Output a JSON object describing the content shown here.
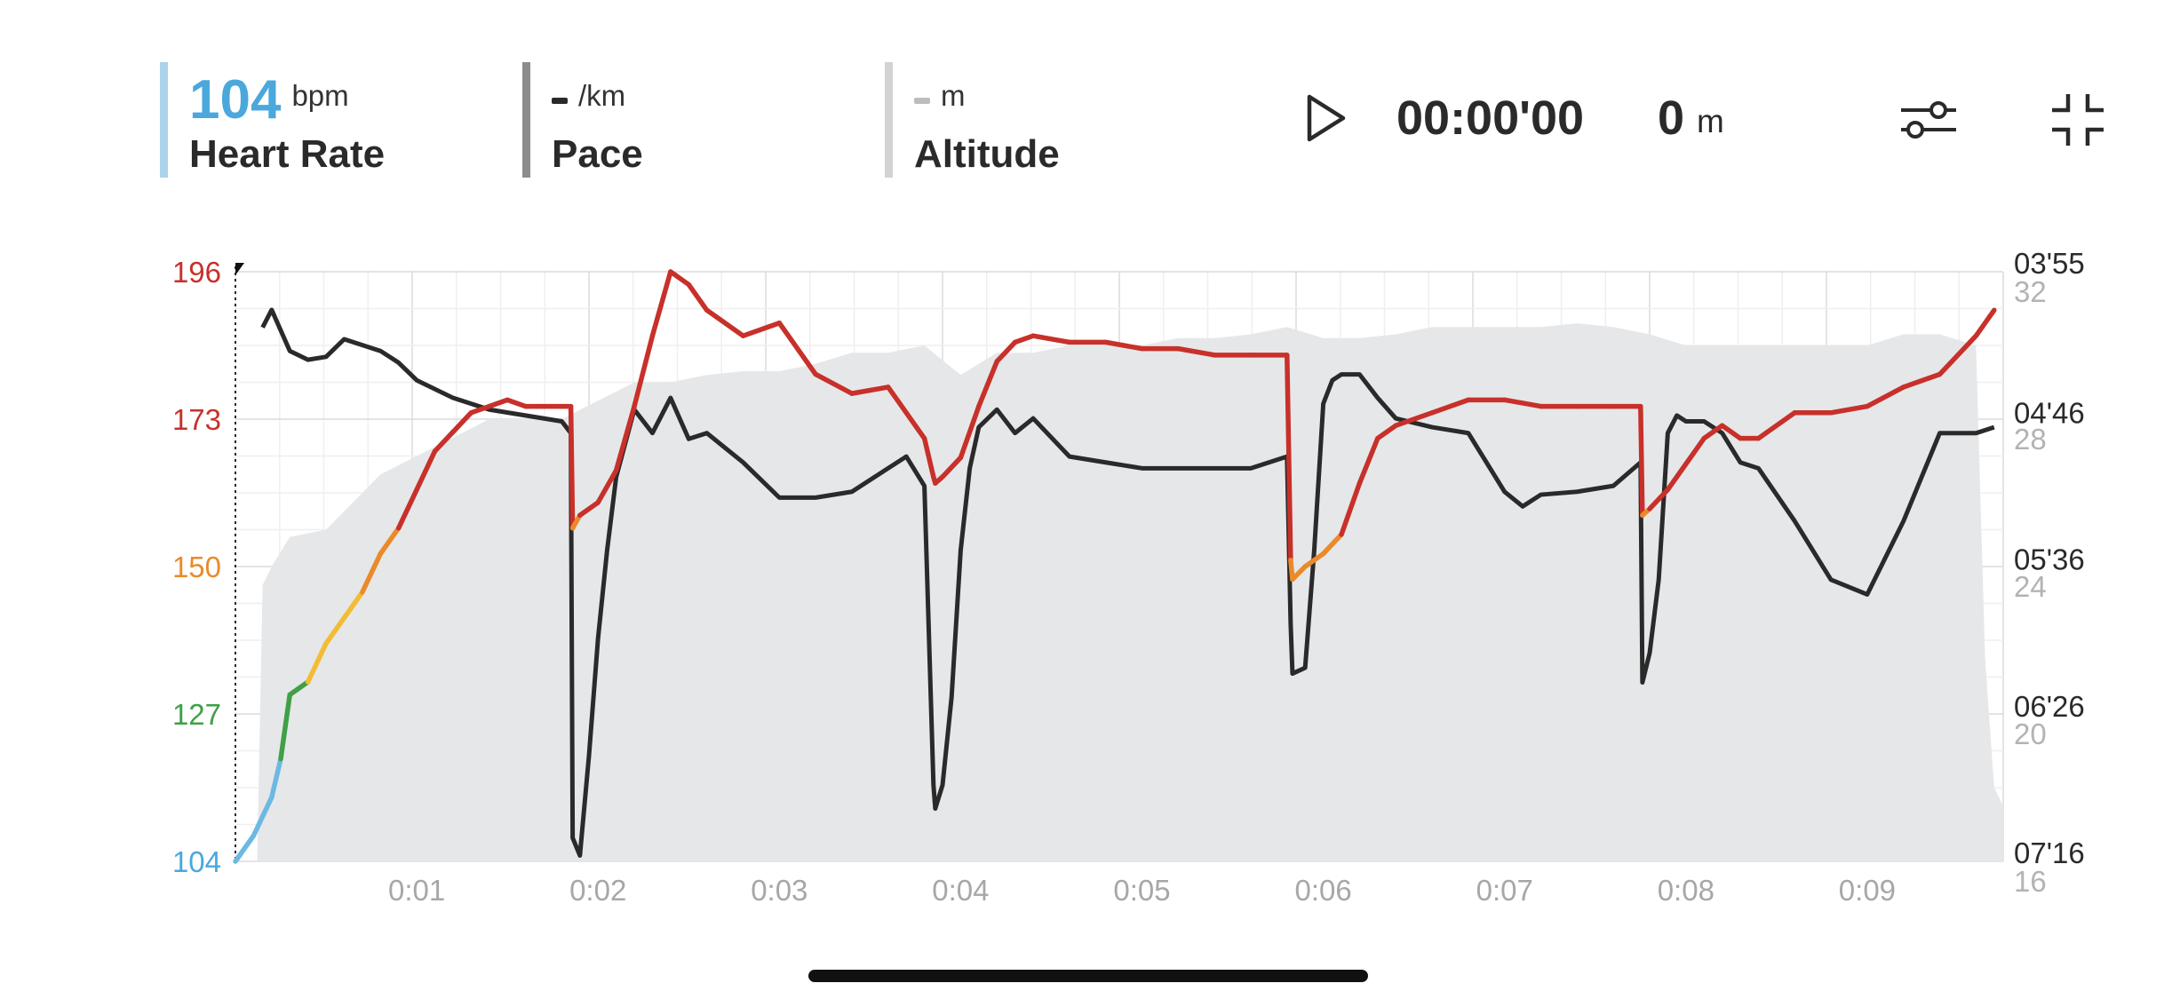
{
  "header": {
    "heart_rate": {
      "value": "104",
      "unit": "bpm",
      "label": "Heart Rate",
      "color": "#4aa8dc",
      "bar_color": "#a9d3ea"
    },
    "pace": {
      "value": "",
      "unit": "/km",
      "label": "Pace",
      "bar_color": "#8c8c8c",
      "dash_color": "#2a2a2a"
    },
    "altitude": {
      "value": "",
      "unit": "m",
      "label": "Altitude",
      "bar_color": "#d3d3d3",
      "dash_color": "#bdbdbd"
    },
    "playback": {
      "icon": "play-icon",
      "timer": "00:00'00",
      "distance_value": "0",
      "distance_unit": "m"
    },
    "icons": [
      "sliders-icon",
      "collapse-icon"
    ]
  },
  "chart_data": {
    "type": "line",
    "x_unit": "h:mm",
    "xlim": [
      0,
      9.75
    ],
    "x_ticks": [
      "0:01",
      "0:02",
      "0:03",
      "0:04",
      "0:05",
      "0:06",
      "0:07",
      "0:08",
      "0:09"
    ],
    "y_left": {
      "ticks": [
        "196",
        "173",
        "150",
        "127",
        "104"
      ],
      "tick_values": [
        196,
        173,
        150,
        127,
        104
      ],
      "tick_colors": [
        "#c8302a",
        "#c8302a",
        "#ea8a2a",
        "#3fa046",
        "#4aa8dc"
      ],
      "ylim": [
        104,
        196
      ]
    },
    "y_right_pace": {
      "ticks": [
        "03'55",
        "04'46",
        "05'36",
        "06'26",
        "07'16"
      ],
      "tick_seconds": [
        235,
        286,
        336,
        386,
        436
      ],
      "ylim_seconds": [
        235,
        436
      ],
      "inverted": true
    },
    "y_right_altitude": {
      "ticks": [
        "32",
        "28",
        "24",
        "20",
        "16"
      ],
      "tick_values": [
        32,
        28,
        24,
        20,
        16
      ],
      "ylim": [
        16,
        32
      ]
    },
    "zone_colors": {
      "104": "#6cb9e2",
      "127": "#3fa046",
      "138": "#f2bd34",
      "150": "#ea8a2a",
      "160": "#c8302a"
    },
    "grid": true,
    "series": [
      {
        "color": "#c8302a",
        "x": [
          0.0,
          0.1,
          0.2,
          0.25,
          0.3,
          0.4,
          0.5,
          0.6,
          0.7,
          0.8,
          0.9,
          1.0,
          1.1,
          1.2,
          1.3,
          1.4,
          1.5,
          1.6,
          1.7,
          1.8,
          1.85,
          1.86,
          1.9,
          2.0,
          2.1,
          2.2,
          2.3,
          2.4,
          2.5,
          2.6,
          2.8,
          3.0,
          3.2,
          3.4,
          3.6,
          3.8,
          3.85,
          3.86,
          3.9,
          4.0,
          4.1,
          4.2,
          4.3,
          4.4,
          4.6,
          4.8,
          5.0,
          5.2,
          5.4,
          5.6,
          5.8,
          5.82,
          5.83,
          5.9,
          6.0,
          6.1,
          6.2,
          6.3,
          6.4,
          6.6,
          6.8,
          7.0,
          7.2,
          7.4,
          7.6,
          7.75,
          7.76,
          7.8,
          7.9,
          8.0,
          8.1,
          8.2,
          8.3,
          8.4,
          8.6,
          8.8,
          9.0,
          9.2,
          9.4,
          9.6,
          9.7
        ],
        "y": [
          104,
          108,
          114,
          120,
          130,
          132,
          138,
          142,
          146,
          152,
          156,
          162,
          168,
          171,
          174,
          175,
          176,
          175,
          175,
          175,
          175,
          156,
          158,
          160,
          165,
          175,
          186,
          196,
          194,
          190,
          186,
          188,
          180,
          177,
          178,
          170,
          164,
          163,
          164,
          167,
          175,
          182,
          185,
          186,
          185,
          185,
          184,
          184,
          183,
          183,
          183,
          151,
          148,
          150,
          152,
          155,
          163,
          170,
          172,
          174,
          176,
          176,
          175,
          175,
          175,
          175,
          158,
          159,
          162,
          166,
          170,
          172,
          170,
          170,
          174,
          174,
          175,
          178,
          180,
          186,
          190
        ]
      },
      {
        "color": "#2a2a2a",
        "x": [
          0.15,
          0.2,
          0.3,
          0.4,
          0.5,
          0.6,
          0.7,
          0.8,
          0.9,
          1.0,
          1.2,
          1.4,
          1.6,
          1.8,
          1.85,
          1.86,
          1.9,
          1.95,
          2.0,
          2.05,
          2.1,
          2.2,
          2.3,
          2.4,
          2.5,
          2.6,
          2.8,
          3.0,
          3.2,
          3.4,
          3.6,
          3.7,
          3.8,
          3.85,
          3.86,
          3.9,
          3.95,
          4.0,
          4.05,
          4.1,
          4.2,
          4.3,
          4.4,
          4.6,
          4.8,
          5.0,
          5.2,
          5.4,
          5.6,
          5.8,
          5.82,
          5.83,
          5.9,
          5.95,
          6.0,
          6.05,
          6.1,
          6.2,
          6.3,
          6.4,
          6.6,
          6.8,
          7.0,
          7.1,
          7.2,
          7.4,
          7.6,
          7.75,
          7.76,
          7.8,
          7.85,
          7.9,
          7.95,
          8.0,
          8.1,
          8.2,
          8.3,
          8.4,
          8.6,
          8.8,
          9.0,
          9.2,
          9.4,
          9.6,
          9.7
        ],
        "y": [
          254,
          248,
          262,
          265,
          264,
          258,
          260,
          262,
          266,
          272,
          278,
          282,
          284,
          286,
          290,
          428,
          434,
          400,
          360,
          330,
          305,
          282,
          290,
          278,
          292,
          290,
          300,
          312,
          312,
          310,
          302,
          298,
          308,
          410,
          418,
          410,
          380,
          330,
          302,
          288,
          282,
          290,
          285,
          298,
          300,
          302,
          302,
          302,
          302,
          298,
          355,
          372,
          370,
          330,
          280,
          272,
          270,
          270,
          278,
          285,
          288,
          290,
          310,
          315,
          311,
          310,
          308,
          300,
          375,
          365,
          340,
          290,
          284,
          286,
          286,
          290,
          300,
          302,
          320,
          340,
          345,
          320,
          290,
          290,
          288
        ]
      }
    ],
    "altitude_area": {
      "color": "#e6e7e9",
      "x": [
        0.12,
        0.15,
        0.2,
        0.3,
        0.5,
        0.8,
        1.0,
        1.2,
        1.4,
        1.6,
        1.8,
        2.0,
        2.2,
        2.4,
        2.6,
        2.8,
        3.0,
        3.2,
        3.4,
        3.6,
        3.8,
        4.0,
        4.2,
        4.4,
        4.6,
        4.8,
        5.0,
        5.2,
        5.4,
        5.6,
        5.8,
        6.0,
        6.2,
        6.4,
        6.6,
        6.8,
        7.0,
        7.2,
        7.4,
        7.6,
        7.8,
        8.0,
        8.2,
        8.4,
        8.6,
        8.8,
        9.0,
        9.2,
        9.4,
        9.6,
        9.65,
        9.7,
        9.75
      ],
      "y": [
        16,
        23.5,
        24,
        24.8,
        25,
        26.5,
        27,
        27.5,
        28,
        28,
        28,
        28.5,
        29,
        29,
        29.2,
        29.3,
        29.3,
        29.5,
        29.8,
        29.8,
        30,
        29.2,
        29.8,
        29.8,
        30,
        30,
        30,
        30.2,
        30.2,
        30.3,
        30.5,
        30.2,
        30.2,
        30.3,
        30.5,
        30.5,
        30.5,
        30.5,
        30.6,
        30.5,
        30.3,
        30,
        30,
        30,
        30,
        30,
        30,
        30.3,
        30.3,
        30,
        21.5,
        18,
        17.5
      ]
    }
  }
}
